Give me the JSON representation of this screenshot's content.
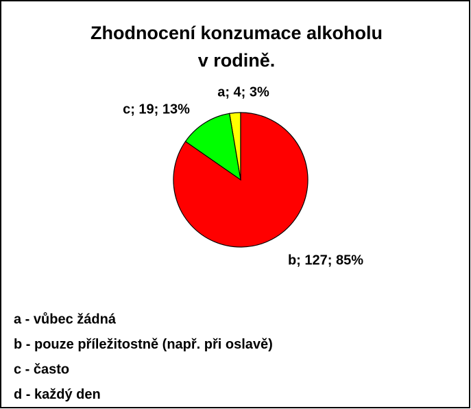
{
  "chart_data": {
    "type": "pie",
    "title": [
      "Zhodnocení konzumace alkoholu",
      "v rodině."
    ],
    "categories": [
      "a",
      "b",
      "c"
    ],
    "values": [
      4,
      127,
      19
    ],
    "value_labels": [
      "a; 4; 3%",
      "b; 127; 85%",
      "c; 19; 13%"
    ],
    "colors": [
      "#ffff00",
      "#ff0000",
      "#00ff00"
    ],
    "legend": [
      "a - vůbec žádná",
      "b - pouze příležitostně (např. při oslavě)",
      "c - často",
      "d - každý den"
    ]
  }
}
